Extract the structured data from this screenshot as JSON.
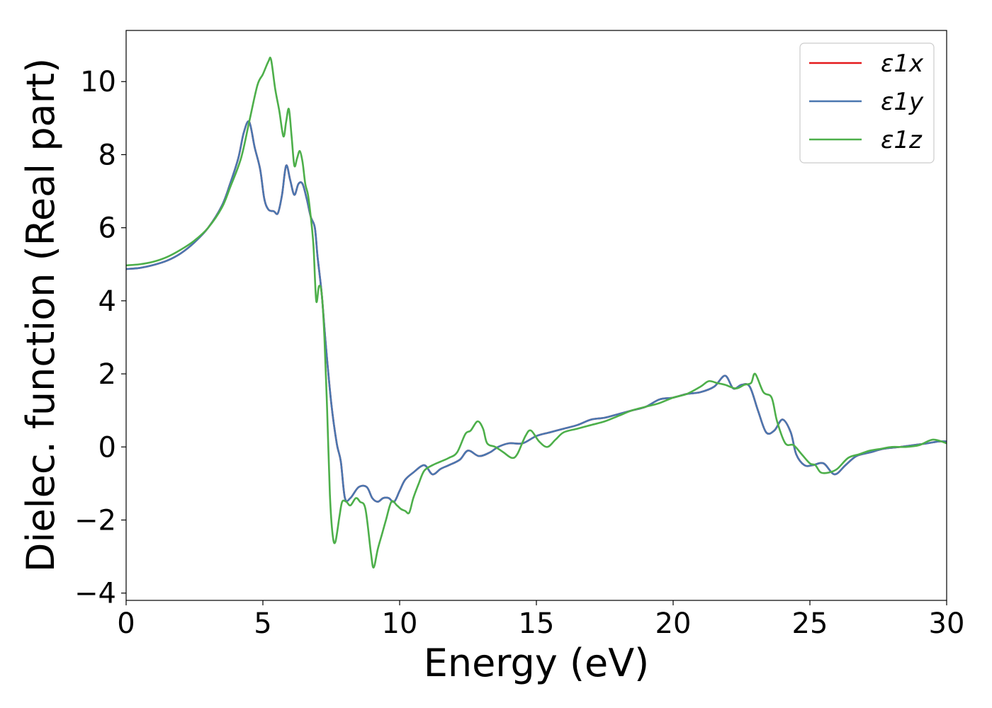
{
  "colors": {
    "x": "#e41a1c",
    "y": "#4a77b0",
    "z": "#4daf4a"
  },
  "chart_data": {
    "type": "line",
    "xlabel": "Energy (eV)",
    "ylabel": "Dielec. function (Real part)",
    "xlim": [
      0,
      30
    ],
    "ylim": [
      -4.2,
      11.4
    ],
    "xticks": [
      "0",
      "5",
      "10",
      "15",
      "20",
      "25",
      "30"
    ],
    "yticks": [
      "−4",
      "−2",
      "0",
      "2",
      "4",
      "6",
      "8",
      "10"
    ],
    "xtick_values": [
      0,
      5,
      10,
      15,
      20,
      25,
      30
    ],
    "ytick_values": [
      -4,
      -2,
      0,
      2,
      4,
      6,
      8,
      10
    ],
    "grid": false,
    "legend_position": "top-right",
    "series": [
      {
        "name": "ε1x",
        "color": "#e41a1c",
        "x": [
          0,
          0.5,
          1,
          1.5,
          2,
          2.5,
          3,
          3.5,
          3.8,
          4.1,
          4.3,
          4.5,
          4.7,
          4.9,
          5.05,
          5.2,
          5.4,
          5.55,
          5.7,
          5.85,
          6.0,
          6.15,
          6.3,
          6.45,
          6.6,
          6.75,
          6.9,
          7.0,
          7.15,
          7.3,
          7.5,
          7.7,
          7.85,
          8.0,
          8.2,
          8.5,
          8.8,
          9.0,
          9.2,
          9.4,
          9.6,
          9.8,
          10.0,
          10.2,
          10.5,
          10.9,
          11.2,
          11.5,
          11.8,
          12.2,
          12.5,
          12.9,
          13.3,
          13.6,
          14.0,
          14.5,
          15.0,
          15.5,
          16.0,
          16.5,
          17.0,
          17.5,
          18.0,
          18.5,
          19.0,
          19.5,
          20.0,
          20.5,
          21.0,
          21.5,
          21.9,
          22.2,
          22.5,
          22.8,
          23.1,
          23.4,
          23.7,
          24.0,
          24.3,
          24.5,
          24.8,
          25.1,
          25.5,
          25.9,
          26.3,
          26.7,
          27.2,
          27.7,
          28.3,
          28.8,
          29.3,
          29.7,
          30
        ],
        "values": [
          4.87,
          4.9,
          4.98,
          5.1,
          5.3,
          5.6,
          6.0,
          6.6,
          7.2,
          7.9,
          8.6,
          8.9,
          8.2,
          7.6,
          6.8,
          6.5,
          6.45,
          6.4,
          6.9,
          7.7,
          7.3,
          6.9,
          7.2,
          7.2,
          6.8,
          6.3,
          6.0,
          5.2,
          4.2,
          2.8,
          1.2,
          0.1,
          -0.4,
          -1.4,
          -1.4,
          -1.1,
          -1.1,
          -1.4,
          -1.5,
          -1.4,
          -1.4,
          -1.5,
          -1.2,
          -0.9,
          -0.7,
          -0.5,
          -0.75,
          -0.6,
          -0.5,
          -0.35,
          -0.1,
          -0.25,
          -0.15,
          0.0,
          0.1,
          0.1,
          0.3,
          0.4,
          0.5,
          0.6,
          0.75,
          0.8,
          0.9,
          1.0,
          1.1,
          1.3,
          1.35,
          1.45,
          1.5,
          1.65,
          1.95,
          1.6,
          1.7,
          1.65,
          1.0,
          0.4,
          0.45,
          0.75,
          0.4,
          -0.2,
          -0.5,
          -0.5,
          -0.45,
          -0.75,
          -0.5,
          -0.25,
          -0.15,
          -0.05,
          0.0,
          0.05,
          0.1,
          0.15,
          0.15
        ]
      },
      {
        "name": "ε1y",
        "color": "#4a77b0",
        "x": [
          0,
          0.5,
          1,
          1.5,
          2,
          2.5,
          3,
          3.5,
          3.8,
          4.1,
          4.3,
          4.5,
          4.7,
          4.9,
          5.05,
          5.2,
          5.4,
          5.55,
          5.7,
          5.85,
          6.0,
          6.15,
          6.3,
          6.45,
          6.6,
          6.75,
          6.9,
          7.0,
          7.15,
          7.3,
          7.5,
          7.7,
          7.85,
          8.0,
          8.2,
          8.5,
          8.8,
          9.0,
          9.2,
          9.4,
          9.6,
          9.8,
          10.0,
          10.2,
          10.5,
          10.9,
          11.2,
          11.5,
          11.8,
          12.2,
          12.5,
          12.9,
          13.3,
          13.6,
          14.0,
          14.5,
          15.0,
          15.5,
          16.0,
          16.5,
          17.0,
          17.5,
          18.0,
          18.5,
          19.0,
          19.5,
          20.0,
          20.5,
          21.0,
          21.5,
          21.9,
          22.2,
          22.5,
          22.8,
          23.1,
          23.4,
          23.7,
          24.0,
          24.3,
          24.5,
          24.8,
          25.1,
          25.5,
          25.9,
          26.3,
          26.7,
          27.2,
          27.7,
          28.3,
          28.8,
          29.3,
          29.7,
          30
        ],
        "values": [
          4.87,
          4.9,
          4.98,
          5.1,
          5.3,
          5.6,
          6.0,
          6.6,
          7.2,
          7.9,
          8.6,
          8.9,
          8.2,
          7.6,
          6.8,
          6.5,
          6.45,
          6.4,
          6.9,
          7.7,
          7.3,
          6.9,
          7.2,
          7.2,
          6.8,
          6.3,
          6.0,
          5.2,
          4.2,
          2.8,
          1.2,
          0.1,
          -0.4,
          -1.4,
          -1.4,
          -1.1,
          -1.1,
          -1.4,
          -1.5,
          -1.4,
          -1.4,
          -1.5,
          -1.2,
          -0.9,
          -0.7,
          -0.5,
          -0.75,
          -0.6,
          -0.5,
          -0.35,
          -0.1,
          -0.25,
          -0.15,
          0.0,
          0.1,
          0.1,
          0.3,
          0.4,
          0.5,
          0.6,
          0.75,
          0.8,
          0.9,
          1.0,
          1.1,
          1.3,
          1.35,
          1.45,
          1.5,
          1.65,
          1.95,
          1.6,
          1.7,
          1.65,
          1.0,
          0.4,
          0.45,
          0.75,
          0.4,
          -0.2,
          -0.5,
          -0.5,
          -0.45,
          -0.75,
          -0.5,
          -0.25,
          -0.15,
          -0.05,
          0.0,
          0.05,
          0.1,
          0.15,
          0.15
        ]
      },
      {
        "name": "ε1z",
        "color": "#4daf4a",
        "x": [
          0,
          0.5,
          1,
          1.5,
          2,
          2.5,
          3,
          3.5,
          3.8,
          4.2,
          4.5,
          4.8,
          5.0,
          5.2,
          5.3,
          5.45,
          5.6,
          5.75,
          5.85,
          5.95,
          6.05,
          6.15,
          6.25,
          6.35,
          6.45,
          6.55,
          6.65,
          6.75,
          6.85,
          6.95,
          7.05,
          7.15,
          7.25,
          7.35,
          7.45,
          7.55,
          7.65,
          7.8,
          7.9,
          8.05,
          8.2,
          8.4,
          8.55,
          8.75,
          8.95,
          9.05,
          9.2,
          9.35,
          9.5,
          9.7,
          9.9,
          10.05,
          10.2,
          10.35,
          10.5,
          10.7,
          10.9,
          11.2,
          11.5,
          11.8,
          12.1,
          12.4,
          12.6,
          12.85,
          13.05,
          13.2,
          13.5,
          13.8,
          14.1,
          14.3,
          14.6,
          14.8,
          15.1,
          15.4,
          15.7,
          16.0,
          16.5,
          17.0,
          17.5,
          18.0,
          18.5,
          19.0,
          19.5,
          20.0,
          20.5,
          21.0,
          21.3,
          21.6,
          21.9,
          22.3,
          22.6,
          22.85,
          23.0,
          23.3,
          23.6,
          23.8,
          24.1,
          24.4,
          24.7,
          25.0,
          25.2,
          25.4,
          25.7,
          26.0,
          26.4,
          26.8,
          27.2,
          27.6,
          28.0,
          28.5,
          29.0,
          29.5,
          30
        ],
        "values": [
          4.97,
          5.0,
          5.07,
          5.2,
          5.4,
          5.65,
          6.0,
          6.55,
          7.1,
          7.9,
          8.9,
          9.9,
          10.2,
          10.55,
          10.6,
          9.8,
          9.2,
          8.5,
          8.9,
          9.25,
          8.5,
          7.7,
          7.9,
          8.1,
          7.8,
          7.2,
          6.9,
          6.3,
          5.5,
          4.0,
          4.4,
          4.2,
          3.0,
          1.0,
          -1.3,
          -2.4,
          -2.6,
          -1.9,
          -1.5,
          -1.5,
          -1.6,
          -1.4,
          -1.5,
          -1.7,
          -2.9,
          -3.3,
          -2.8,
          -2.4,
          -2.0,
          -1.5,
          -1.6,
          -1.7,
          -1.75,
          -1.8,
          -1.4,
          -1.0,
          -0.65,
          -0.5,
          -0.4,
          -0.3,
          -0.15,
          0.35,
          0.45,
          0.7,
          0.5,
          0.1,
          0.0,
          -0.15,
          -0.3,
          -0.2,
          0.3,
          0.45,
          0.15,
          0.0,
          0.2,
          0.4,
          0.5,
          0.6,
          0.7,
          0.85,
          1.0,
          1.1,
          1.2,
          1.35,
          1.45,
          1.65,
          1.8,
          1.75,
          1.7,
          1.6,
          1.7,
          1.75,
          2.0,
          1.5,
          1.35,
          0.7,
          0.1,
          0.05,
          -0.2,
          -0.45,
          -0.5,
          -0.7,
          -0.7,
          -0.6,
          -0.3,
          -0.2,
          -0.1,
          -0.05,
          0.0,
          0.0,
          0.05,
          0.2,
          0.1
        ]
      }
    ]
  }
}
